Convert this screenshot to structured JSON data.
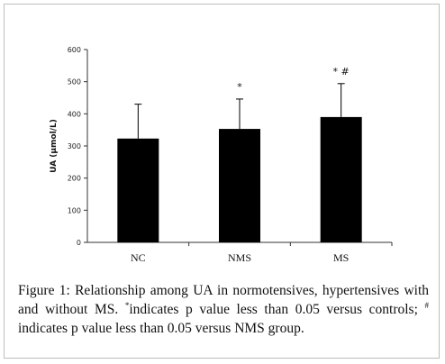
{
  "chart_data": {
    "type": "bar",
    "ylabel": "UA (μmol/L)",
    "ylim": [
      0,
      600
    ],
    "yticks": [
      0,
      100,
      200,
      300,
      400,
      500,
      600
    ],
    "categories": [
      "NC",
      "NMS",
      "MS"
    ],
    "values": [
      323,
      353,
      390
    ],
    "errors": [
      107,
      93,
      104
    ],
    "annotations": [
      "",
      "*",
      "*  #"
    ],
    "bar_color": "#000000"
  },
  "caption": {
    "lead": "Figure 1: Relationship among UA in normotensives, hypertensives with and without MS. ",
    "sup1": "*",
    "mid": "indicates p value less than 0.05 versus controls; ",
    "sup2": "#",
    "tail": " indicates p value less than 0.05 versus NMS group."
  }
}
